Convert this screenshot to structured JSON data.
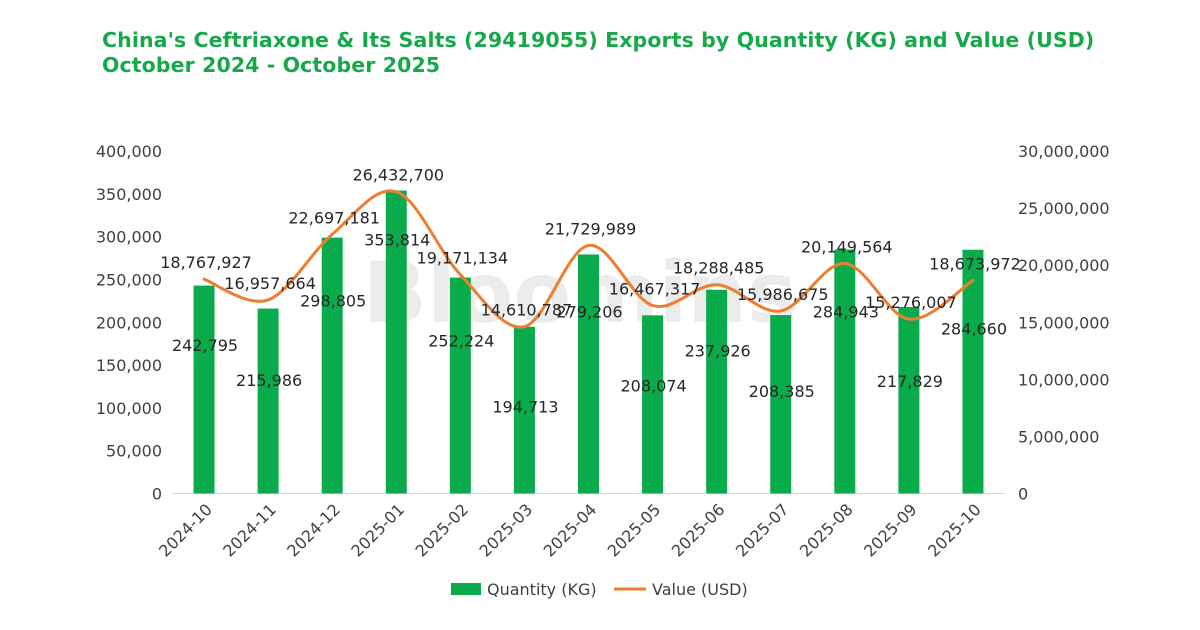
{
  "header": {
    "title_line1": "China's Ceftriaxone & Its Salts (29419055) Exports by Quantity (KG) and Value (USD)",
    "title_line2": "October 2024 - October 2025"
  },
  "watermark": "Bloomins",
  "colors": {
    "title": "#17a84b",
    "bar": "#0aab4b",
    "line": "#ed7d31"
  },
  "chart_data": {
    "type": "bar",
    "title": "China's Ceftriaxone & Its Salts (29419055) Exports by Quantity (KG) and Value (USD) October 2024 - October 2025",
    "categories": [
      "2024-10",
      "2024-11",
      "2024-12",
      "2025-01",
      "2025-02",
      "2025-03",
      "2025-04",
      "2025-05",
      "2025-06",
      "2025-07",
      "2025-08",
      "2025-09",
      "2025-10"
    ],
    "series": [
      {
        "name": "Quantity (KG)",
        "type": "bar",
        "axis": "left",
        "values": [
          242795,
          215986,
          298805,
          353814,
          252224,
          194713,
          279206,
          208074,
          237926,
          208385,
          284943,
          217829,
          284660
        ],
        "labels": [
          "242,795",
          "215,986",
          "298,805",
          "353,814",
          "252,224",
          "194,713",
          "279,206",
          "208,074",
          "237,926",
          "208,385",
          "284,943",
          "217,829",
          "284,660"
        ]
      },
      {
        "name": "Value (USD)",
        "type": "line",
        "axis": "right",
        "smooth": true,
        "values": [
          18767927,
          16957664,
          22697181,
          26432700,
          19171134,
          14610787,
          21729989,
          16467317,
          18288485,
          15986675,
          20149564,
          15276007,
          18673972
        ],
        "labels": [
          "18,767,927",
          "16,957,664",
          "22,697,181",
          "26,432,700",
          "19,171,134",
          "14,610,787",
          "21,729,989",
          "16,467,317",
          "18,288,485",
          "15,986,675",
          "20,149,564",
          "15,276,007",
          "18,673,972"
        ]
      }
    ],
    "y_left": {
      "min": 0,
      "max": 400000,
      "step": 50000,
      "ticks": [
        "0",
        "50,000",
        "100,000",
        "150,000",
        "200,000",
        "250,000",
        "300,000",
        "350,000",
        "400,000"
      ]
    },
    "y_right": {
      "min": 0,
      "max": 30000000,
      "step": 5000000,
      "ticks": [
        "0",
        "5,000,000",
        "10,000,000",
        "15,000,000",
        "20,000,000",
        "25,000,000",
        "30,000,000"
      ]
    },
    "grid": false,
    "legend": {
      "position": "bottom",
      "items": [
        "Quantity (KG)",
        "Value (USD)"
      ]
    }
  }
}
